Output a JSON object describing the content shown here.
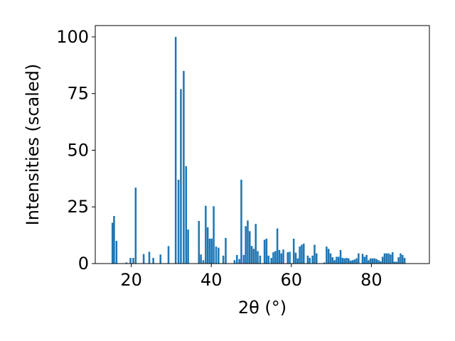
{
  "chart_data": {
    "type": "bar",
    "xlabel": "2θ (°)",
    "ylabel": "Intensities (scaled)",
    "xlim": [
      11,
      94.5
    ],
    "ylim": [
      0,
      105
    ],
    "xticks": [
      "20",
      "40",
      "60",
      "80"
    ],
    "xtick_values": [
      20,
      40,
      60,
      80
    ],
    "yticks": [
      "0",
      "25",
      "50",
      "75",
      "100"
    ],
    "ytick_values": [
      0,
      25,
      50,
      75,
      100
    ],
    "grid": false,
    "bar_color": "#1f77b4",
    "bar_width": 0.45,
    "peaks": [
      {
        "x": 15.3,
        "y": 18
      },
      {
        "x": 15.7,
        "y": 21
      },
      {
        "x": 16.3,
        "y": 10
      },
      {
        "x": 18.8,
        "y": 0.5
      },
      {
        "x": 19.8,
        "y": 2.5
      },
      {
        "x": 20.5,
        "y": 2.5
      },
      {
        "x": 21.1,
        "y": 33.5
      },
      {
        "x": 23.1,
        "y": 4.2
      },
      {
        "x": 24.5,
        "y": 5.2
      },
      {
        "x": 25.5,
        "y": 2.5
      },
      {
        "x": 27.3,
        "y": 4
      },
      {
        "x": 29.3,
        "y": 7.7
      },
      {
        "x": 31.1,
        "y": 100
      },
      {
        "x": 31.8,
        "y": 37
      },
      {
        "x": 32.4,
        "y": 77
      },
      {
        "x": 33.1,
        "y": 85
      },
      {
        "x": 33.7,
        "y": 43
      },
      {
        "x": 34.2,
        "y": 15
      },
      {
        "x": 36.9,
        "y": 18.8
      },
      {
        "x": 37.4,
        "y": 4
      },
      {
        "x": 38.0,
        "y": 1.5
      },
      {
        "x": 38.6,
        "y": 25.5
      },
      {
        "x": 39.1,
        "y": 16
      },
      {
        "x": 39.6,
        "y": 11
      },
      {
        "x": 40.1,
        "y": 11
      },
      {
        "x": 40.6,
        "y": 25.3
      },
      {
        "x": 41.2,
        "y": 7.5
      },
      {
        "x": 41.8,
        "y": 7
      },
      {
        "x": 43.0,
        "y": 3.5
      },
      {
        "x": 43.6,
        "y": 11.3
      },
      {
        "x": 45.8,
        "y": 1.5
      },
      {
        "x": 46.4,
        "y": 3.8
      },
      {
        "x": 47.0,
        "y": 2
      },
      {
        "x": 47.5,
        "y": 37
      },
      {
        "x": 48.1,
        "y": 3.8
      },
      {
        "x": 48.6,
        "y": 16.5
      },
      {
        "x": 49.1,
        "y": 19
      },
      {
        "x": 49.6,
        "y": 14.3
      },
      {
        "x": 50.1,
        "y": 7.8
      },
      {
        "x": 50.6,
        "y": 6.5
      },
      {
        "x": 51.1,
        "y": 17.5
      },
      {
        "x": 51.6,
        "y": 5.5
      },
      {
        "x": 52.2,
        "y": 3.5
      },
      {
        "x": 53.3,
        "y": 10.5
      },
      {
        "x": 53.8,
        "y": 11
      },
      {
        "x": 54.3,
        "y": 3.5
      },
      {
        "x": 55.0,
        "y": 2.5
      },
      {
        "x": 55.5,
        "y": 5
      },
      {
        "x": 56.0,
        "y": 5.5
      },
      {
        "x": 56.5,
        "y": 15.5
      },
      {
        "x": 57.0,
        "y": 6
      },
      {
        "x": 57.5,
        "y": 4.5
      },
      {
        "x": 58.0,
        "y": 6.2
      },
      {
        "x": 59.1,
        "y": 5
      },
      {
        "x": 59.6,
        "y": 5.2
      },
      {
        "x": 60.6,
        "y": 11
      },
      {
        "x": 61.1,
        "y": 4.8
      },
      {
        "x": 61.6,
        "y": 2.3
      },
      {
        "x": 62.1,
        "y": 7.5
      },
      {
        "x": 62.6,
        "y": 8.3
      },
      {
        "x": 63.1,
        "y": 8.8
      },
      {
        "x": 64.1,
        "y": 3.5
      },
      {
        "x": 64.6,
        "y": 2.5
      },
      {
        "x": 65.3,
        "y": 3.5
      },
      {
        "x": 65.8,
        "y": 8.3
      },
      {
        "x": 66.3,
        "y": 4.5
      },
      {
        "x": 68.2,
        "y": 0.5
      },
      {
        "x": 68.8,
        "y": 7.5
      },
      {
        "x": 69.3,
        "y": 6.5
      },
      {
        "x": 69.8,
        "y": 4.5
      },
      {
        "x": 70.3,
        "y": 2.8
      },
      {
        "x": 70.8,
        "y": 1.5
      },
      {
        "x": 71.3,
        "y": 3
      },
      {
        "x": 71.8,
        "y": 3
      },
      {
        "x": 72.3,
        "y": 6
      },
      {
        "x": 72.8,
        "y": 2.5
      },
      {
        "x": 73.3,
        "y": 2.3
      },
      {
        "x": 73.8,
        "y": 2.5
      },
      {
        "x": 74.3,
        "y": 2.3
      },
      {
        "x": 74.8,
        "y": 1.3
      },
      {
        "x": 75.3,
        "y": 1.5
      },
      {
        "x": 75.8,
        "y": 1.8
      },
      {
        "x": 76.3,
        "y": 2.3
      },
      {
        "x": 76.8,
        "y": 4.5
      },
      {
        "x": 77.8,
        "y": 4.3
      },
      {
        "x": 78.3,
        "y": 3
      },
      {
        "x": 78.8,
        "y": 3.8
      },
      {
        "x": 79.3,
        "y": 1.5
      },
      {
        "x": 79.8,
        "y": 2.3
      },
      {
        "x": 80.3,
        "y": 2.3
      },
      {
        "x": 80.8,
        "y": 2.3
      },
      {
        "x": 81.3,
        "y": 2
      },
      {
        "x": 81.8,
        "y": 1.5
      },
      {
        "x": 82.3,
        "y": 1
      },
      {
        "x": 82.8,
        "y": 3
      },
      {
        "x": 83.3,
        "y": 4.5
      },
      {
        "x": 83.8,
        "y": 4.5
      },
      {
        "x": 84.3,
        "y": 4.5
      },
      {
        "x": 84.8,
        "y": 4
      },
      {
        "x": 85.3,
        "y": 5
      },
      {
        "x": 85.8,
        "y": 0.8
      },
      {
        "x": 86.3,
        "y": 0.8
      },
      {
        "x": 86.8,
        "y": 2.8
      },
      {
        "x": 87.3,
        "y": 4.5
      },
      {
        "x": 87.8,
        "y": 3.8
      },
      {
        "x": 88.3,
        "y": 2.5
      }
    ]
  }
}
